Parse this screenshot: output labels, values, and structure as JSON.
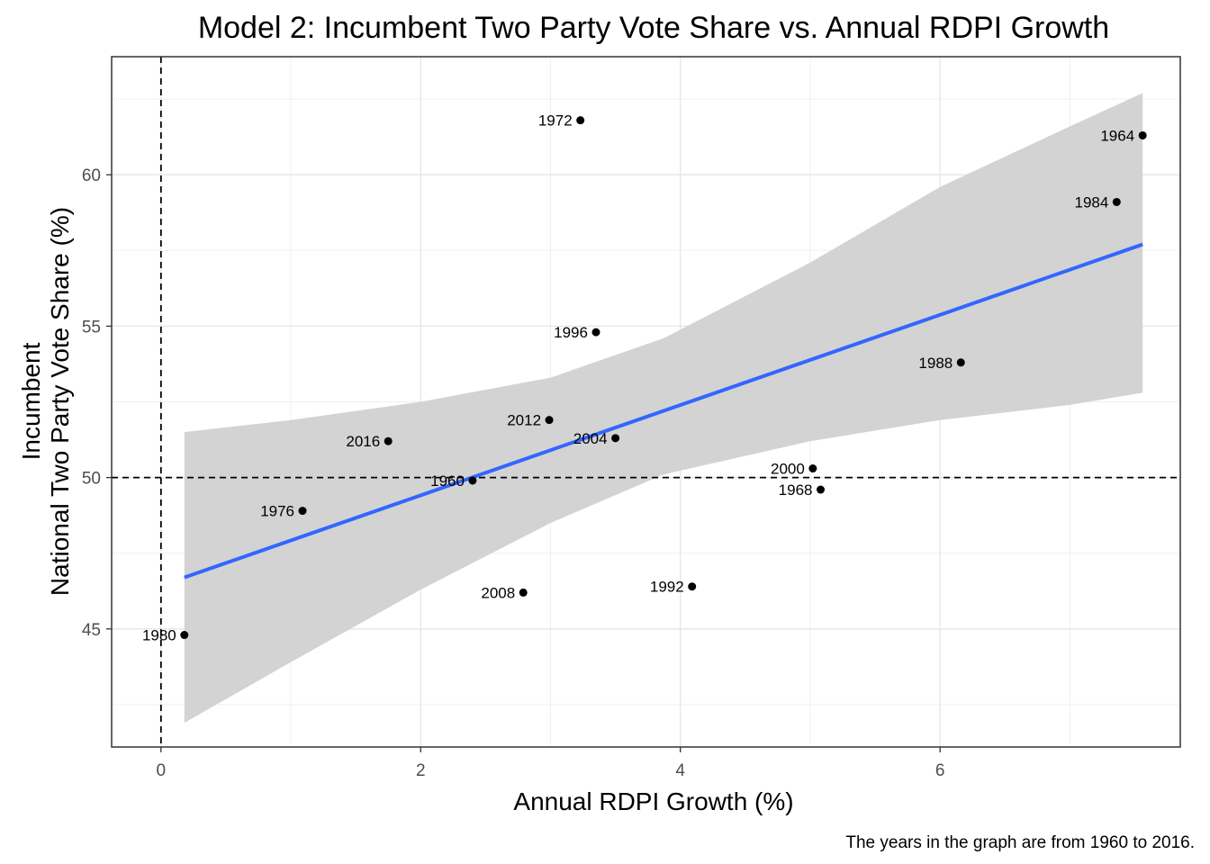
{
  "chart_data": {
    "type": "scatter",
    "title": "Model 2: Incumbent Two Party Vote Share vs. Annual RDPI Growth",
    "xlabel": "Annual RDPI Growth (%)",
    "ylabel_line1": "Incumbent",
    "ylabel_line2": "National Two Party Vote Share (%)",
    "caption": "The years in the graph are from 1960 to 2016.",
    "xlim": [
      -0.38,
      7.85
    ],
    "ylim": [
      41.1,
      63.9
    ],
    "xticks": [
      0,
      2,
      4,
      6
    ],
    "yticks": [
      45,
      50,
      55,
      60
    ],
    "grid": true,
    "reference_lines": {
      "x": 0,
      "y": 50
    },
    "points": [
      {
        "label": "1960",
        "x": 2.4,
        "y": 49.9
      },
      {
        "label": "1964",
        "x": 7.56,
        "y": 61.3
      },
      {
        "label": "1968",
        "x": 5.08,
        "y": 49.6
      },
      {
        "label": "1972",
        "x": 3.23,
        "y": 61.8
      },
      {
        "label": "1976",
        "x": 1.09,
        "y": 48.9
      },
      {
        "label": "1980",
        "x": 0.18,
        "y": 44.8
      },
      {
        "label": "1984",
        "x": 7.36,
        "y": 59.1
      },
      {
        "label": "1988",
        "x": 6.16,
        "y": 53.8
      },
      {
        "label": "1992",
        "x": 4.09,
        "y": 46.4
      },
      {
        "label": "1996",
        "x": 3.35,
        "y": 54.8
      },
      {
        "label": "2000",
        "x": 5.02,
        "y": 50.3
      },
      {
        "label": "2004",
        "x": 3.5,
        "y": 51.3
      },
      {
        "label": "2008",
        "x": 2.79,
        "y": 46.2
      },
      {
        "label": "2012",
        "x": 2.99,
        "y": 51.9
      },
      {
        "label": "2016",
        "x": 1.75,
        "y": 51.2
      }
    ],
    "fit_line": {
      "x": [
        0.18,
        7.56
      ],
      "y": [
        46.7,
        57.7
      ],
      "color": "#3366ff"
    },
    "confidence_band": {
      "x": [
        0.18,
        1.0,
        2.0,
        3.0,
        3.87,
        5.0,
        6.0,
        7.0,
        7.56
      ],
      "upper": [
        51.5,
        51.9,
        52.5,
        53.3,
        54.6,
        57.1,
        59.6,
        61.6,
        62.7
      ],
      "lower": [
        41.9,
        43.9,
        46.3,
        48.5,
        50.1,
        51.2,
        51.9,
        52.4,
        52.8
      ],
      "color": "#d3d3d3"
    }
  }
}
